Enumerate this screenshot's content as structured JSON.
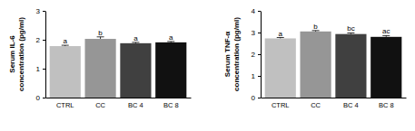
{
  "chart_data": [
    {
      "type": "bar",
      "ylabel": [
        "Serum IL-6",
        "concentration (pg/ml)"
      ],
      "categories": [
        "CTRL",
        "CC",
        "BC 4",
        "BC 8"
      ],
      "values": [
        1.78,
        2.03,
        1.88,
        1.91
      ],
      "errors": [
        0.03,
        0.07,
        0.03,
        0.03
      ],
      "annotations": [
        "a",
        "b",
        "a",
        "a"
      ],
      "colors": [
        "#c0c0c0",
        "#969696",
        "#404040",
        "#111111"
      ],
      "ylim": [
        0,
        3
      ],
      "yticks": [
        0,
        1,
        2,
        3
      ],
      "grid": false
    },
    {
      "type": "bar",
      "ylabel": [
        "Serum TNF-α",
        "concentration (pg/ml)"
      ],
      "categories": [
        "CTRL",
        "CC",
        "BC 4",
        "BC 8"
      ],
      "values": [
        2.73,
        3.05,
        2.93,
        2.8
      ],
      "errors": [
        0.04,
        0.04,
        0.05,
        0.06
      ],
      "annotations": [
        "a",
        "b",
        "bc",
        "ac"
      ],
      "colors": [
        "#c0c0c0",
        "#969696",
        "#404040",
        "#111111"
      ],
      "ylim": [
        0,
        4
      ],
      "yticks": [
        0,
        1,
        2,
        3,
        4
      ],
      "grid": false
    }
  ]
}
